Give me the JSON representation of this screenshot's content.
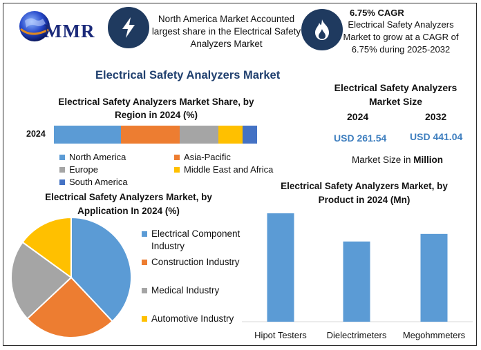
{
  "header": {
    "logo_text": "MMR",
    "callout_text": "North America Market Accounted largest share in the Electrical Safety Analyzers Market",
    "cagr_title": "6.75% CAGR",
    "cagr_text": "Electrical Safety Analyzers Market to grow at a CAGR of 6.75% during 2025-2032",
    "icons": [
      "globe-icon",
      "lightning-icon",
      "flame-icon"
    ]
  },
  "main_title": "Electrical Safety Analyzers Market",
  "market_size": {
    "title": "Electrical Safety Analyzers Market Size",
    "year_1": "2024",
    "year_2": "2032",
    "value_1": "USD 261.54",
    "value_2": "USD 441.04",
    "note_prefix": "Market Size in ",
    "note_unit": "Million"
  },
  "colors": {
    "blue": "#5b9bd5",
    "orange": "#ed7d31",
    "gray": "#a5a5a5",
    "yellow": "#ffc000",
    "dark_blue": "#4472c4",
    "value_text": "#3f7fbf",
    "title_text": "#1f3f6e"
  },
  "chart_data": [
    {
      "type": "bar",
      "orientation": "horizontal-stacked",
      "title": "Electrical Safety Analyzers Market Share, by Region in 2024 (%)",
      "categories": [
        "2024"
      ],
      "series": [
        {
          "name": "North America",
          "values": [
            33
          ]
        },
        {
          "name": "Asia-Pacific",
          "values": [
            29
          ]
        },
        {
          "name": "Europe",
          "values": [
            19
          ]
        },
        {
          "name": "Middle East and Africa",
          "values": [
            12
          ]
        },
        {
          "name": "South America",
          "values": [
            7
          ]
        }
      ],
      "legend": "bottom"
    },
    {
      "type": "pie",
      "title": "Electrical Safety Analyzers Market, by Application In 2024 (%)",
      "labels": [
        "Electrical Component Industry",
        "Construction Industry",
        "Medical Industry",
        "Automotive Industry"
      ],
      "values": [
        38,
        25,
        22,
        15
      ],
      "legend": "right"
    },
    {
      "type": "bar",
      "title": "Electrical Safety Analyzers Market, by Product in 2024 (Mn)",
      "categories": [
        "Hipot Testers",
        "Dielectrimeters",
        "Megohmmeters"
      ],
      "values": [
        100,
        74,
        81
      ],
      "ylim": [
        0,
        100
      ],
      "grid": false,
      "legend": "none"
    }
  ]
}
